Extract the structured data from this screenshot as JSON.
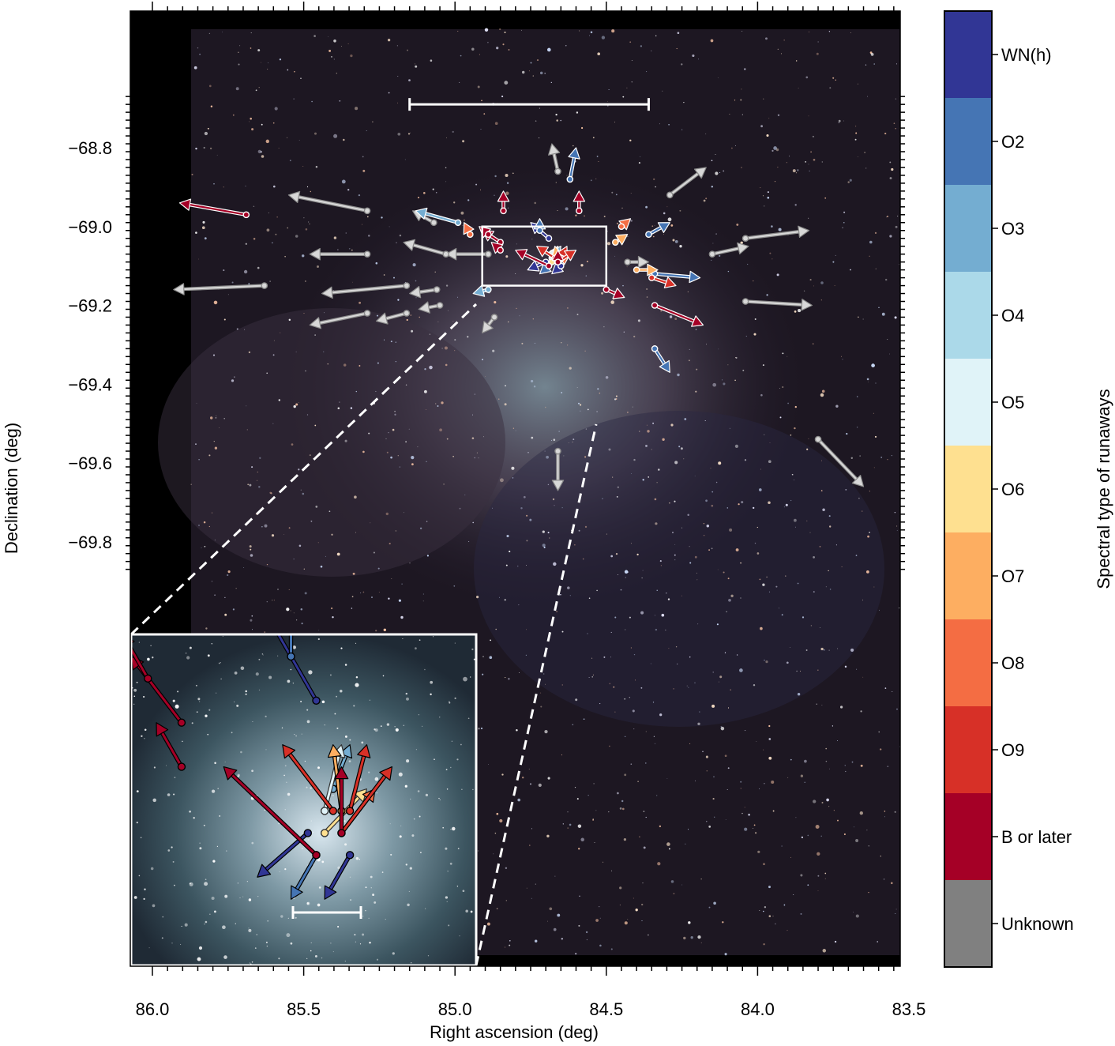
{
  "chart_data": {
    "type": "scatter",
    "title": "",
    "xlabel": "Right ascension (deg)",
    "ylabel": "Declination (deg)",
    "xlim": [
      86.03,
      83.48
    ],
    "ylim": [
      -69.85,
      -68.67
    ],
    "x_inverted": true,
    "x_ticks": [
      "86.0",
      "85.5",
      "85.0",
      "84.5",
      "84.0",
      "83.5"
    ],
    "y_ticks": [
      "−68.8",
      "−69.0",
      "−69.2",
      "−69.4",
      "−69.6",
      "−69.8"
    ],
    "background": "star-field image",
    "zoom_box": {
      "ra": [
        84.91,
        84.5
      ],
      "dec": [
        -69.0,
        -69.15
      ]
    },
    "scale_bar_main": {
      "ra": [
        85.15,
        84.36
      ],
      "dec": -68.69
    },
    "colorbar": {
      "label": "Spectral type of runaways",
      "categories": [
        {
          "label": "WN(h)",
          "color": "#313695"
        },
        {
          "label": "O2",
          "color": "#4575b4"
        },
        {
          "label": "O3",
          "color": "#74add1"
        },
        {
          "label": "O4",
          "color": "#abd9e9"
        },
        {
          "label": "O5",
          "color": "#e0f3f8"
        },
        {
          "label": "O6",
          "color": "#fee090"
        },
        {
          "label": "O7",
          "color": "#fdae61"
        },
        {
          "label": "O8",
          "color": "#f46d43"
        },
        {
          "label": "O9",
          "color": "#d73027"
        },
        {
          "label": "B or later",
          "color": "#a50026"
        },
        {
          "label": "Unknown",
          "color": "#808080"
        }
      ]
    },
    "series": [
      {
        "type": "Unknown",
        "vectors": [
          [
            84.66,
            -68.86,
            84.68,
            -68.79
          ],
          [
            84.29,
            -68.92,
            84.17,
            -68.85
          ],
          [
            85.29,
            -68.96,
            85.55,
            -68.92
          ],
          [
            85.07,
            -68.99,
            85.14,
            -68.96
          ],
          [
            84.04,
            -69.03,
            83.83,
            -69.01
          ],
          [
            84.15,
            -69.07,
            84.03,
            -69.05
          ],
          [
            84.89,
            -69.07,
            85.03,
            -69.07
          ],
          [
            85.03,
            -69.07,
            85.17,
            -69.04
          ],
          [
            85.29,
            -69.07,
            85.48,
            -69.07
          ],
          [
            84.43,
            -69.09,
            84.36,
            -69.09
          ],
          [
            85.63,
            -69.15,
            85.93,
            -69.16
          ],
          [
            85.16,
            -69.15,
            85.44,
            -69.17
          ],
          [
            85.06,
            -69.16,
            85.15,
            -69.17
          ],
          [
            85.05,
            -69.2,
            85.12,
            -69.21
          ],
          [
            85.16,
            -69.22,
            85.26,
            -69.24
          ],
          [
            85.29,
            -69.22,
            85.48,
            -69.25
          ],
          [
            84.87,
            -69.23,
            84.91,
            -69.27
          ],
          [
            84.04,
            -69.19,
            83.82,
            -69.2
          ],
          [
            84.66,
            -69.57,
            84.66,
            -69.67
          ],
          [
            83.8,
            -69.54,
            83.65,
            -69.66
          ]
        ]
      },
      {
        "type": "WN(h)",
        "vectors": [
          [
            84.69,
            -69.03,
            84.75,
            -68.99
          ],
          [
            84.7,
            -69.09,
            84.76,
            -69.11
          ],
          [
            84.65,
            -69.1,
            84.68,
            -69.12
          ]
        ]
      },
      {
        "type": "O2",
        "vectors": [
          [
            84.62,
            -68.88,
            84.6,
            -68.8
          ],
          [
            84.72,
            -69.01,
            84.72,
            -68.98
          ],
          [
            84.36,
            -69.02,
            84.29,
            -68.99
          ],
          [
            84.34,
            -69.12,
            84.19,
            -69.13
          ],
          [
            84.34,
            -69.31,
            84.29,
            -69.37
          ],
          [
            84.69,
            -69.1,
            84.72,
            -69.12
          ]
        ]
      },
      {
        "type": "O3",
        "vectors": [
          [
            84.99,
            -68.99,
            85.13,
            -68.96
          ],
          [
            84.89,
            -69.16,
            84.94,
            -69.17
          ],
          [
            84.67,
            -69.07,
            84.65,
            -69.05
          ]
        ]
      },
      {
        "type": "O5",
        "vectors": [
          [
            84.68,
            -69.08,
            84.66,
            -69.05
          ]
        ]
      },
      {
        "type": "O6",
        "vectors": [
          [
            84.68,
            -69.09,
            84.63,
            -69.07
          ]
        ]
      },
      {
        "type": "O7",
        "vectors": [
          [
            84.47,
            -69.04,
            84.43,
            -69.02
          ],
          [
            84.4,
            -69.11,
            84.33,
            -69.11
          ],
          [
            84.66,
            -69.08,
            84.67,
            -69.05
          ]
        ]
      },
      {
        "type": "O8",
        "vectors": [
          [
            84.45,
            -69.0,
            84.42,
            -68.98
          ],
          [
            84.95,
            -69.02,
            84.97,
            -68.99
          ],
          [
            84.66,
            -69.09,
            84.62,
            -69.07
          ]
        ]
      },
      {
        "type": "O9",
        "vectors": [
          [
            84.35,
            -69.13,
            84.27,
            -69.15
          ],
          [
            84.67,
            -69.08,
            84.73,
            -69.05
          ],
          [
            84.65,
            -69.08,
            84.63,
            -69.05
          ],
          [
            84.66,
            -69.09,
            84.6,
            -69.06
          ]
        ]
      },
      {
        "type": "B or later",
        "vectors": [
          [
            85.69,
            -68.97,
            85.91,
            -68.94
          ],
          [
            84.84,
            -68.96,
            84.84,
            -68.91
          ],
          [
            84.59,
            -68.96,
            84.59,
            -68.91
          ],
          [
            84.85,
            -69.04,
            84.91,
            -69.01
          ],
          [
            84.85,
            -69.06,
            84.88,
            -69.04
          ],
          [
            84.89,
            -69.02,
            84.92,
            -69.0
          ],
          [
            84.5,
            -69.16,
            84.44,
            -69.18
          ],
          [
            84.34,
            -69.2,
            84.18,
            -69.25
          ],
          [
            84.69,
            -69.1,
            84.8,
            -69.06
          ],
          [
            84.66,
            -69.09,
            84.66,
            -69.06
          ]
        ]
      }
    ]
  }
}
